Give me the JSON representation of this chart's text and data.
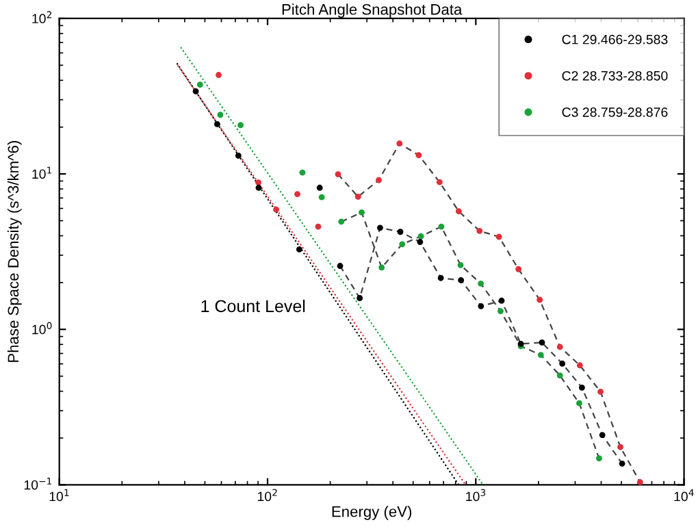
{
  "chart_data": {
    "type": "line",
    "title": "Pitch Angle Snapshot Data",
    "xlabel": "Energy (eV)",
    "ylabel": "Phase Space Density (s^3/km^6)",
    "log": "xy",
    "xlim": [
      10,
      10000
    ],
    "ylim": [
      0.1,
      100
    ],
    "xticks": [
      {
        "value": 10,
        "label": "10$^{1}$"
      },
      {
        "value": 100,
        "label": "10$^{2}$"
      },
      {
        "value": 1000,
        "label": "10$^{3}$"
      },
      {
        "value": 10000,
        "label": "10$^{4}$"
      }
    ],
    "yticks": [
      {
        "value": 0.1,
        "label": "10$^{−1}$"
      },
      {
        "value": 1,
        "label": "10$^{0}$"
      },
      {
        "value": 10,
        "label": "10$^{1}$"
      },
      {
        "value": 100,
        "label": "10$^{2}$"
      }
    ],
    "grid": false,
    "legend": "top right",
    "marker": "circle",
    "line_style": "dashed",
    "annotations": [
      "1 Count Level"
    ],
    "series": [
      {
        "name": "C1 29.466-29.583",
        "color": "#000000",
        "x": [
          45.2,
          null,
          57.3,
          null,
          72.4,
          null,
          90.6,
          null,
          142,
          null,
          178,
          null,
          223,
          277,
          347,
          434,
          540,
          679,
          849,
          1059,
          1330,
          1645,
          2078,
          2602,
          3234,
          4050,
          5040
        ],
        "values": [
          34.0,
          null,
          20.9,
          null,
          13.1,
          null,
          8.15,
          null,
          3.27,
          null,
          8.15,
          null,
          2.56,
          1.59,
          4.5,
          4.24,
          3.65,
          2.14,
          2.07,
          1.41,
          1.53,
          0.807,
          0.823,
          0.602,
          0.422,
          0.209,
          0.137
        ]
      },
      {
        "name": "C2 28.733-28.850",
        "color": "#e0303a",
        "x": [
          58.2,
          null,
          90.3,
          null,
          110,
          null,
          139,
          null,
          175,
          null,
          218,
          272,
          342,
          430,
          532,
          670,
          828,
          1042,
          1292,
          1603,
          2027,
          2535,
          3160,
          3972,
          4946,
          6152
        ],
        "values": [
          43.3,
          null,
          8.81,
          null,
          5.9,
          null,
          7.41,
          null,
          4.58,
          null,
          9.95,
          7.13,
          9.12,
          15.7,
          13.2,
          8.85,
          5.75,
          4.3,
          3.94,
          2.44,
          1.55,
          0.771,
          0.587,
          0.397,
          0.175,
          0.104
        ]
      },
      {
        "name": "C3 28.759-28.876",
        "color": "#1aa33a",
        "x": [
          47.4,
          null,
          59.3,
          null,
          74.2,
          null,
          147,
          null,
          182,
          null,
          226,
          283,
          353,
          443,
          545,
          683,
          845,
          1057,
          1315,
          1645,
          2052,
          2535,
          3139,
          3908
        ],
        "values": [
          37.5,
          null,
          24.0,
          null,
          20.6,
          null,
          10.2,
          null,
          7.08,
          null,
          4.93,
          5.65,
          2.5,
          3.53,
          3.97,
          4.58,
          2.59,
          1.97,
          1.31,
          0.78,
          0.685,
          0.505,
          0.335,
          0.148
        ]
      },
      {
        "color": "#000000",
        "marker": "none",
        "line_style": "dotted",
        "x": [
          36.7,
          828
        ],
        "values": [
          51.5,
          0.1
        ]
      },
      {
        "color": "#e0303a",
        "marker": "none",
        "line_style": "dotted",
        "x": [
          37,
          893
        ],
        "values": [
          50,
          0.1
        ]
      },
      {
        "color": "#1aa33a",
        "marker": "none",
        "line_style": "dotted",
        "x": [
          38.3,
          1084
        ],
        "values": [
          65.2,
          0.1
        ]
      }
    ]
  }
}
